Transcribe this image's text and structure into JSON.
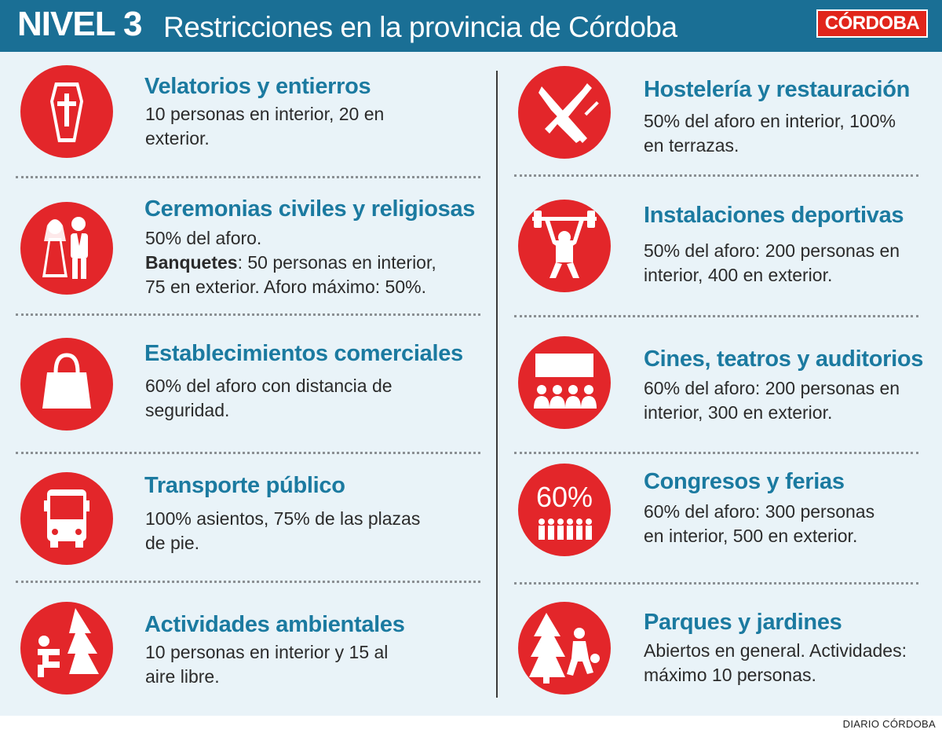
{
  "header": {
    "level": "NIVEL 3",
    "title": "Restricciones en la provincia de Córdoba",
    "logo": "CÓRDOBA"
  },
  "left": [
    {
      "title": "Velatorios y entierros",
      "lines": [
        "10  personas en interior, 20 en",
        "exterior."
      ],
      "icon": "coffin-icon"
    },
    {
      "title": "Ceremonias civiles y religiosas",
      "lines": [
        "50% del aforo."
      ],
      "bold": "Banquetes",
      "bold_rest": ": 50 personas en interior,",
      "extra": "75 en exterior. Aforo máximo: 50%.",
      "icon": "wedding-couple-icon"
    },
    {
      "title": "Establecimientos comerciales",
      "lines": [
        "60% del aforo con distancia de",
        "seguridad."
      ],
      "icon": "shopping-bag-icon"
    },
    {
      "title": "Transporte público",
      "lines": [
        "100% asientos, 75% de las plazas",
        "de pie."
      ],
      "icon": "bus-icon"
    },
    {
      "title": "Actividades ambientales",
      "lines": [
        "10 personas en interior y 15 al",
        "aire libre."
      ],
      "icon": "outdoor-activity-icon"
    }
  ],
  "right": [
    {
      "title": "Hostelería y restauración",
      "lines": [
        "50% del aforo en interior, 100%",
        "en terrazas."
      ],
      "icon": "knife-fork-icon"
    },
    {
      "title": "Instalaciones deportivas",
      "lines": [
        "50% del aforo: 200 personas en",
        "interior, 400 en exterior."
      ],
      "icon": "weightlifter-icon"
    },
    {
      "title": "Cines, teatros y auditorios",
      "lines": [
        "60% del aforo: 200 personas en",
        "interior, 300 en exterior."
      ],
      "icon": "cinema-audience-icon"
    },
    {
      "title": "Congresos y ferias",
      "lines": [
        "60% del aforo: 300 personas",
        "en interior, 500 en exterior."
      ],
      "icon": "crowd-percentage-icon",
      "icon_label": "60%"
    },
    {
      "title": "Parques y jardines",
      "lines": [
        "Abiertos en general. Actividades:",
        "máximo 10 personas."
      ],
      "icon": "park-play-icon"
    }
  ],
  "credit": "DIARIO CÓRDOBA",
  "colors": {
    "header": "#1a6f95",
    "panel": "#e9f3f8",
    "accent_red": "#e3262a",
    "title_blue": "#1b7aa0"
  }
}
